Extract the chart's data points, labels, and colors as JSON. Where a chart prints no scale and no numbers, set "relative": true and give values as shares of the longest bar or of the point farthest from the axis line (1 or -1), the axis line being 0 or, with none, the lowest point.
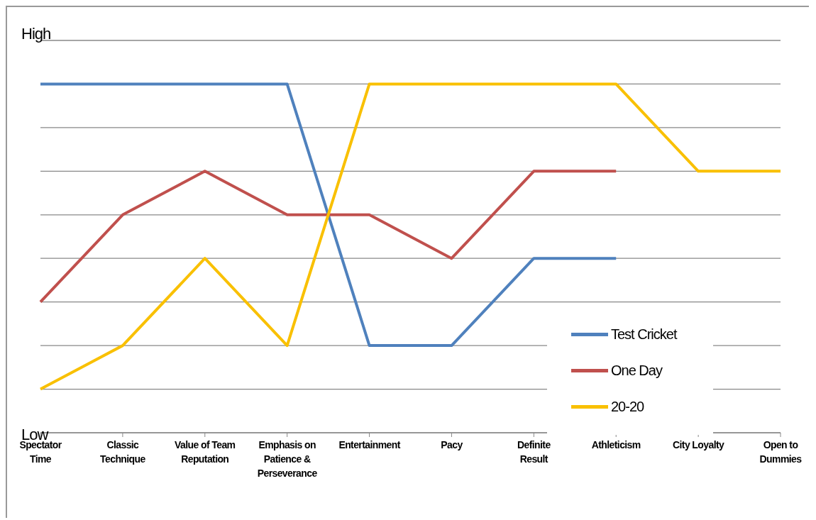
{
  "chart_data": {
    "type": "line",
    "relative": true,
    "categories": [
      "Spectator Time",
      "Classic Technique",
      "Value of Team Reputation",
      "Emphasis on Patience & Perseverance",
      "Entertainment",
      "Pacy",
      "Definite Result",
      "Athleticism",
      "City Loyalty",
      "Open to Dummies"
    ],
    "series": [
      {
        "name": "Test Cricket",
        "color": "#4f81bd",
        "values": [
          1,
          1,
          1,
          1,
          0.25,
          0.25,
          0.5,
          0.5,
          null,
          null
        ]
      },
      {
        "name": "One Day",
        "color": "#c0504d",
        "values": [
          0.375,
          0.625,
          0.75,
          0.625,
          0.625,
          0.5,
          0.75,
          0.75,
          null,
          null
        ]
      },
      {
        "name": "20-20",
        "color": "#f9c000",
        "values": [
          0.125,
          0.25,
          0.5,
          0.25,
          1,
          1,
          1,
          1,
          0.75,
          0.75
        ]
      }
    ],
    "annotations": [
      "High",
      "Low"
    ],
    "grid": "y",
    "legend": "bottom right"
  }
}
